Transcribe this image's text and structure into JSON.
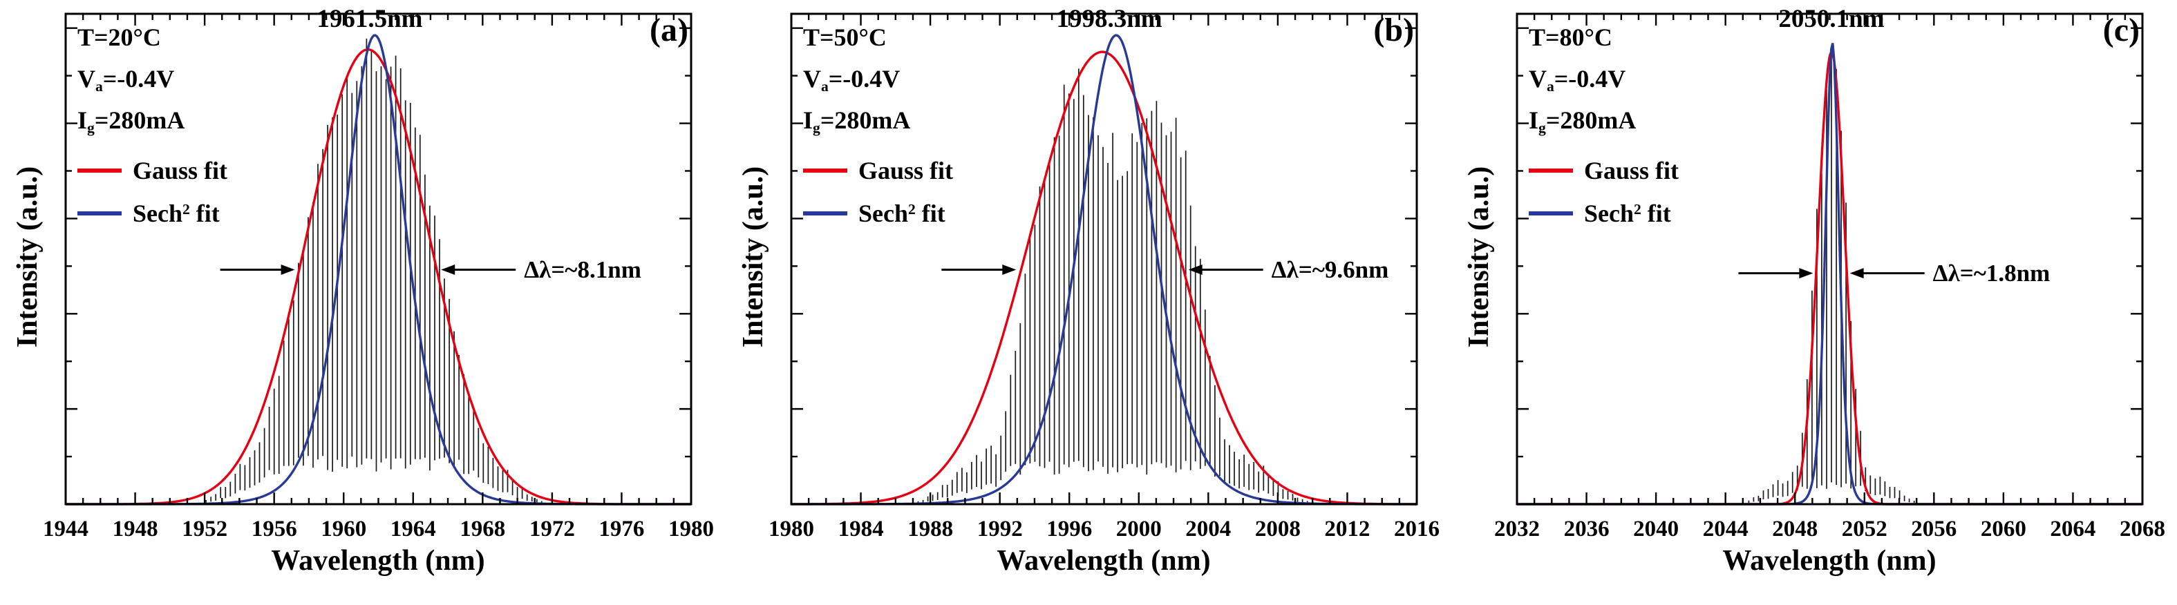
{
  "figure": {
    "background": "#ffffff",
    "colors": {
      "gauss": "#e60012",
      "sech2": "#283a97",
      "spectrum": "#1a1a1a",
      "axis": "#000000",
      "text": "#000000"
    }
  },
  "chart_data": [
    {
      "type": "line",
      "panel_label": "(a)",
      "peak_label": "1961.5nm",
      "peak_nm": 1961.5,
      "fwhm_nm": 8.1,
      "fwhm_annotation": "Δλ=~8.1nm",
      "xlabel": "Wavelength (nm)",
      "ylabel": "Intensity (a.u.)",
      "xlim": [
        1944,
        1980
      ],
      "ylim": [
        0,
        1.03
      ],
      "xticks": [
        1944,
        1948,
        1952,
        1956,
        1960,
        1964,
        1968,
        1972,
        1976,
        1980
      ],
      "conditions": [
        {
          "pre": "T",
          "sub": "",
          "post": "=20°C"
        },
        {
          "pre": "V",
          "sub": "a",
          "post": "=-0.4V"
        },
        {
          "pre": "I",
          "sub": "g",
          "post": "=280mA"
        }
      ],
      "legend": [
        {
          "pre": "Gauss",
          "sup": "",
          "post": " fit",
          "color": "#e60012"
        },
        {
          "pre": "Sech",
          "sup": "2",
          "post": " fit",
          "color": "#283a97"
        }
      ],
      "series": [
        {
          "name": "Gauss fit",
          "type": "gauss",
          "center": 1961.4,
          "fwhm": 8.1,
          "amplitude": 0.955
        },
        {
          "name": "Sech2 fit",
          "type": "sech2",
          "center": 1961.8,
          "fwhm": 8.3,
          "amplitude": 0.985
        },
        {
          "name": "measured spectrum",
          "type": "comb",
          "center": 1961.6,
          "fwhm": 8.6,
          "power": 1.3,
          "amplitude": 0.98,
          "mode_spacing": 0.28,
          "span": 22,
          "jitter": 0.1,
          "seed": 1,
          "dip": null,
          "boost": null,
          "pedestal": {
            "height": 0.155,
            "halfwidth": 7.6,
            "power": 3
          }
        }
      ]
    },
    {
      "type": "line",
      "panel_label": "(b)",
      "peak_label": "1998.3nm",
      "peak_nm": 1998.3,
      "fwhm_nm": 9.6,
      "fwhm_annotation": "Δλ=~9.6nm",
      "xlabel": "Wavelength (nm)",
      "ylabel": "Intensity (a.u.)",
      "xlim": [
        1980,
        2016
      ],
      "ylim": [
        0,
        1.03
      ],
      "xticks": [
        1980,
        1984,
        1988,
        1992,
        1996,
        2000,
        2004,
        2008,
        2012,
        2016
      ],
      "conditions": [
        {
          "pre": "T",
          "sub": "",
          "post": "=50°C"
        },
        {
          "pre": "V",
          "sub": "a",
          "post": "=-0.4V"
        },
        {
          "pre": "I",
          "sub": "g",
          "post": "=280mA"
        }
      ],
      "legend": [
        {
          "pre": "Gauss",
          "sup": "",
          "post": " fit",
          "color": "#e60012"
        },
        {
          "pre": "Sech",
          "sup": "2",
          "post": " fit",
          "color": "#283a97"
        }
      ],
      "series": [
        {
          "name": "Gauss fit",
          "type": "gauss",
          "center": 1997.9,
          "fwhm": 9.6,
          "amplitude": 0.95
        },
        {
          "name": "Sech2 fit",
          "type": "sech2",
          "center": 1998.7,
          "fwhm": 9.9,
          "amplitude": 0.985
        },
        {
          "name": "measured spectrum",
          "type": "comb",
          "center": 1998.5,
          "fwhm": 10.3,
          "power": 2.2,
          "amplitude": 0.95,
          "mode_spacing": 0.28,
          "span": 24,
          "jitter": 0.14,
          "seed": 2,
          "dip": {
            "x": 1998.9,
            "depth": 0.17,
            "width": 1.4
          },
          "boost": {
            "x": 2002.7,
            "height": 0.06,
            "width": 1.0
          },
          "pedestal": {
            "height": 0.14,
            "halfwidth": 8.8,
            "power": 3
          }
        }
      ]
    },
    {
      "type": "line",
      "panel_label": "(c)",
      "peak_label": "2050.1nm",
      "peak_nm": 2050.1,
      "fwhm_nm": 1.8,
      "fwhm_annotation": "Δλ=~1.8nm",
      "xlabel": "Wavelength (nm)",
      "ylabel": "Intensity (a.u.)",
      "xlim": [
        2032,
        2068
      ],
      "ylim": [
        0,
        1.03
      ],
      "xticks": [
        2032,
        2036,
        2040,
        2044,
        2048,
        2052,
        2056,
        2060,
        2064,
        2068
      ],
      "conditions": [
        {
          "pre": "T",
          "sub": "",
          "post": "=80°C"
        },
        {
          "pre": "V",
          "sub": "a",
          "post": "=-0.4V"
        },
        {
          "pre": "I",
          "sub": "g",
          "post": "=280mA"
        }
      ],
      "legend": [
        {
          "pre": "Gauss",
          "sup": "",
          "post": " fit",
          "color": "#e60012"
        },
        {
          "pre": "Sech",
          "sup": "2",
          "post": " fit",
          "color": "#283a97"
        }
      ],
      "series": [
        {
          "name": "Gauss fit",
          "type": "gauss",
          "center": 2050.1,
          "fwhm": 1.8,
          "amplitude": 0.95
        },
        {
          "name": "Sech2 fit",
          "type": "sech2",
          "center": 2050.15,
          "fwhm": 1.85,
          "amplitude": 0.97
        },
        {
          "name": "measured spectrum",
          "type": "comb",
          "center": 2050.1,
          "fwhm": 2.1,
          "power": 1,
          "amplitude": 1.0,
          "mode_spacing": 0.28,
          "span": 12,
          "jitter": 0.18,
          "seed": 3,
          "dip": null,
          "boost": null,
          "pedestal": {
            "height": 0.07,
            "halfwidth": 3.6,
            "power": 2
          }
        }
      ]
    }
  ]
}
